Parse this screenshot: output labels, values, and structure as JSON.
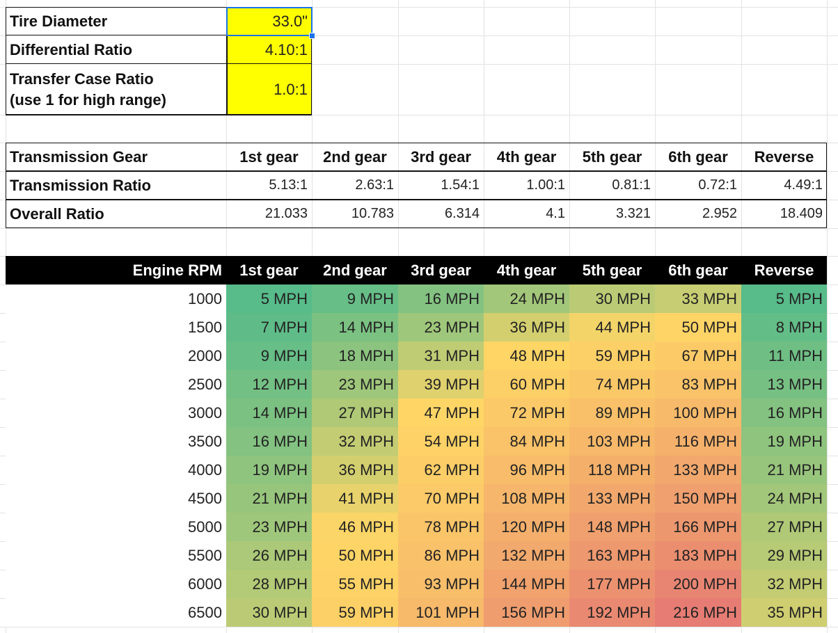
{
  "inputs": [
    {
      "label": "Tire Diameter",
      "value": "33.0\""
    },
    {
      "label": "Differential Ratio",
      "value": "4.10:1"
    },
    {
      "label": "Transfer Case Ratio\n(use 1 for high range)",
      "value": "1.0:1"
    }
  ],
  "gears": {
    "header": [
      "Transmission Gear",
      "1st gear",
      "2nd gear",
      "3rd gear",
      "4th gear",
      "5th gear",
      "6th gear",
      "Reverse"
    ],
    "rows": [
      [
        "Transmission Ratio",
        "5.13:1",
        "2.63:1",
        "1.54:1",
        "1.00:1",
        "0.81:1",
        "0.72:1",
        "4.49:1"
      ],
      [
        "Overall Ratio",
        21.033,
        10.783,
        6.314,
        4.1,
        3.321,
        2.952,
        18.409
      ]
    ]
  },
  "speeds": {
    "header": [
      "Engine RPM",
      "1st gear",
      "2nd gear",
      "3rd gear",
      "4th gear",
      "5th gear",
      "6th gear",
      "Reverse"
    ],
    "rows": [
      [
        1000,
        "5 MPH",
        "9 MPH",
        "16 MPH",
        "24 MPH",
        "30 MPH",
        "33 MPH",
        "5 MPH"
      ],
      [
        1500,
        "7 MPH",
        "14 MPH",
        "23 MPH",
        "36 MPH",
        "44 MPH",
        "50 MPH",
        "8 MPH"
      ],
      [
        2000,
        "9 MPH",
        "18 MPH",
        "31 MPH",
        "48 MPH",
        "59 MPH",
        "67 MPH",
        "11 MPH"
      ],
      [
        2500,
        "12 MPH",
        "23 MPH",
        "39 MPH",
        "60 MPH",
        "74 MPH",
        "83 MPH",
        "13 MPH"
      ],
      [
        3000,
        "14 MPH",
        "27 MPH",
        "47 MPH",
        "72 MPH",
        "89 MPH",
        "100 MPH",
        "16 MPH"
      ],
      [
        3500,
        "16 MPH",
        "32 MPH",
        "54 MPH",
        "84 MPH",
        "103 MPH",
        "116 MPH",
        "19 MPH"
      ],
      [
        4000,
        "19 MPH",
        "36 MPH",
        "62 MPH",
        "96 MPH",
        "118 MPH",
        "133 MPH",
        "21 MPH"
      ],
      [
        4500,
        "21 MPH",
        "41 MPH",
        "70 MPH",
        "108 MPH",
        "133 MPH",
        "150 MPH",
        "24 MPH"
      ],
      [
        5000,
        "23 MPH",
        "46 MPH",
        "78 MPH",
        "120 MPH",
        "148 MPH",
        "166 MPH",
        "27 MPH"
      ],
      [
        5500,
        "26 MPH",
        "50 MPH",
        "86 MPH",
        "132 MPH",
        "163 MPH",
        "183 MPH",
        "29 MPH"
      ],
      [
        6000,
        "28 MPH",
        "55 MPH",
        "93 MPH",
        "144 MPH",
        "177 MPH",
        "200 MPH",
        "32 MPH"
      ],
      [
        6500,
        "30 MPH",
        "59 MPH",
        "101 MPH",
        "156 MPH",
        "192 MPH",
        "216 MPH",
        "35 MPH"
      ]
    ]
  }
}
